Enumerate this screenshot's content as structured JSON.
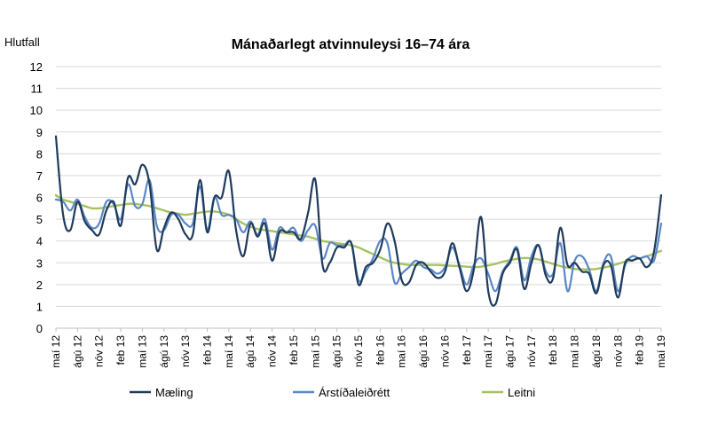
{
  "chart_data": {
    "type": "line",
    "title": "Mánaðarlegt atvinnuleysi 16–74 ára",
    "ylabel": "Hlutfall",
    "xlabel": "",
    "ylim": [
      0,
      12
    ],
    "yticks": [
      0,
      1,
      2,
      3,
      4,
      5,
      6,
      7,
      8,
      9,
      10,
      11,
      12
    ],
    "grid": true,
    "legend_position": "bottom",
    "x_tick_labels": [
      "maí 12",
      "ágú 12",
      "nóv 12",
      "feb 13",
      "maí 13",
      "ágú 13",
      "nóv 13",
      "feb 14",
      "maí 14",
      "ágú 14",
      "nóv 14",
      "feb 15",
      "maí 15",
      "ágú 15",
      "nóv 15",
      "feb 16",
      "maí 16",
      "ágú 16",
      "nóv 16",
      "feb 17",
      "maí 17",
      "ágú 17",
      "nóv 17",
      "feb 18",
      "maí 18",
      "ágú 18",
      "nóv 18",
      "feb 19",
      "maí 19"
    ],
    "months_count": 85,
    "series": [
      {
        "name": "Mæling",
        "color": "#1f3b5c",
        "values": [
          8.8,
          5.2,
          4.5,
          5.8,
          4.9,
          4.5,
          4.3,
          5.4,
          5.8,
          4.7,
          6.9,
          6.6,
          7.5,
          6.6,
          3.6,
          4.6,
          5.3,
          5.0,
          4.3,
          4.3,
          6.8,
          4.4,
          6.0,
          6.0,
          7.2,
          4.5,
          3.3,
          4.8,
          4.2,
          4.8,
          3.1,
          4.4,
          4.4,
          4.4,
          4.1,
          5.3,
          6.8,
          2.9,
          3.0,
          3.7,
          3.7,
          3.9,
          2.0,
          2.8,
          3.0,
          3.6,
          4.8,
          4.0,
          2.2,
          2.1,
          2.9,
          3.0,
          2.6,
          2.3,
          2.6,
          3.9,
          2.8,
          1.7,
          2.7,
          5.1,
          1.7,
          1.1,
          2.5,
          3.0,
          3.6,
          1.8,
          3.0,
          3.8,
          2.4,
          2.3,
          4.6,
          2.9,
          3.0,
          2.6,
          2.5,
          1.6,
          2.9,
          2.9,
          1.4,
          3.0,
          3.1,
          3.2,
          2.8,
          3.5,
          6.1
        ]
      },
      {
        "name": "Árstíðaleiðrétt",
        "color": "#5b87c5",
        "values": [
          5.9,
          5.8,
          5.4,
          5.9,
          5.1,
          4.6,
          4.8,
          5.8,
          5.7,
          5.0,
          6.6,
          5.6,
          5.7,
          6.8,
          4.7,
          4.5,
          5.2,
          5.2,
          4.8,
          4.8,
          6.5,
          4.5,
          6.0,
          5.2,
          5.2,
          5.0,
          4.4,
          4.9,
          4.3,
          5.0,
          3.6,
          4.6,
          4.4,
          4.6,
          4.0,
          4.5,
          4.7,
          3.2,
          3.9,
          3.8,
          3.8,
          3.9,
          2.2,
          2.6,
          3.2,
          4.0,
          3.9,
          2.1,
          2.5,
          2.8,
          3.1,
          2.8,
          2.7,
          2.5,
          2.8,
          3.7,
          2.9,
          2.0,
          2.9,
          3.2,
          2.5,
          1.7,
          2.6,
          3.1,
          3.7,
          2.2,
          3.3,
          3.8,
          2.6,
          2.5,
          3.9,
          1.7,
          3.1,
          3.3,
          2.7,
          1.7,
          3.0,
          3.3,
          1.7,
          2.9,
          3.3,
          3.2,
          3.3,
          3.1,
          4.8
        ]
      },
      {
        "name": "Leitni",
        "color": "#a5c261",
        "values": [
          6.1,
          5.9,
          5.8,
          5.7,
          5.6,
          5.5,
          5.5,
          5.55,
          5.6,
          5.65,
          5.7,
          5.7,
          5.65,
          5.6,
          5.5,
          5.4,
          5.3,
          5.25,
          5.2,
          5.25,
          5.3,
          5.35,
          5.35,
          5.3,
          5.2,
          5.0,
          4.8,
          4.65,
          4.55,
          4.5,
          4.45,
          4.4,
          4.35,
          4.3,
          4.25,
          4.2,
          4.1,
          4.0,
          3.95,
          3.9,
          3.85,
          3.8,
          3.7,
          3.55,
          3.4,
          3.25,
          3.1,
          3.0,
          2.95,
          2.9,
          2.9,
          2.9,
          2.9,
          2.9,
          2.88,
          2.86,
          2.85,
          2.82,
          2.8,
          2.82,
          2.88,
          2.95,
          3.05,
          3.12,
          3.18,
          3.22,
          3.2,
          3.15,
          3.05,
          2.95,
          2.85,
          2.78,
          2.72,
          2.7,
          2.7,
          2.72,
          2.78,
          2.85,
          2.95,
          3.05,
          3.12,
          3.2,
          3.3,
          3.42,
          3.55
        ]
      }
    ]
  }
}
